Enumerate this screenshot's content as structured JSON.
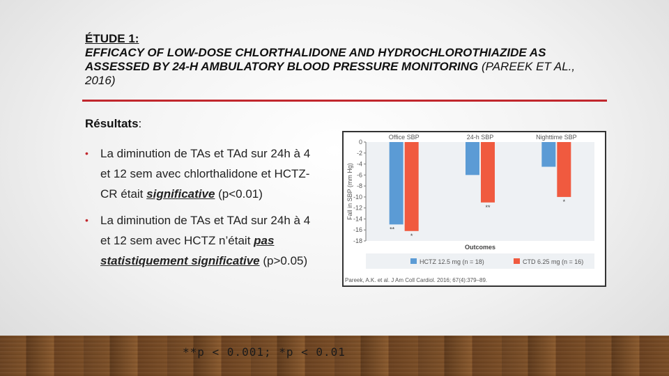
{
  "slide": {
    "title_line1": "ÉTUDE 1:",
    "title_line2_italic": "EFFICACY OF LOW-DOSE CHLORTHALIDONE AND HYDROCHLOROTHIAZIDE AS ASSESSED BY 24-H AMBULATORY BLOOD PRESSURE MONITORING",
    "title_citation": " (PAREEK ET AL., 2016)",
    "results_label": "Résultats",
    "results_colon": ":",
    "bullet_char": "•",
    "bullet1_text": "La diminution de TAs et TAd sur 24h à 4 et 12 sem avec chlorthalidone et HCTZ-CR était ",
    "bullet1_emph": "significative",
    "bullet1_tail": " (p<0.01)",
    "bullet2_text": "La diminution de TAs et TAd sur 24h à 4 et 12 sem avec HCTZ n’était ",
    "bullet2_emph": "pas statistiquement significative",
    "bullet2_tail": " (p>0.05)",
    "footnote": "**p < 0.001; *p < 0.01",
    "accent_color": "#c1272d"
  },
  "chart_data": {
    "type": "bar",
    "categories": [
      "Office SBP",
      "24-h SBP",
      "Nighttime SBP"
    ],
    "series": [
      {
        "name": "HCTZ 12.5 mg (n = 18)",
        "values": [
          -15,
          -6,
          -4.5
        ],
        "color": "#5b9bd5",
        "annotations": [
          "**",
          "",
          ""
        ]
      },
      {
        "name": "CTD 6.25 mg (n = 16)",
        "values": [
          -16.2,
          -11,
          -10
        ],
        "color": "#f05a3f",
        "annotations": [
          "*",
          "**",
          "*"
        ]
      }
    ],
    "ylabel": "Fall in SBP (mm Hg)",
    "xlabel": "Outcomes",
    "ylim": [
      -18,
      0
    ],
    "yticks": [
      "0",
      "-2",
      "-4",
      "-6",
      "-8",
      "-10",
      "-12",
      "-14",
      "-16",
      "-18"
    ],
    "source": "Pareek, A.K. et al. J Am Coll Cardiol. 2016; 67(4):379–89.",
    "legend_position": "bottom"
  }
}
